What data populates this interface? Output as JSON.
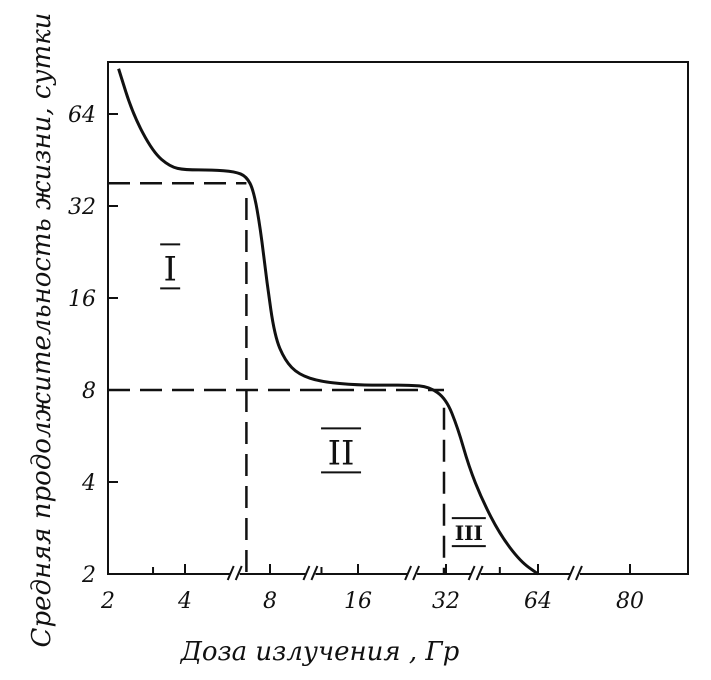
{
  "chart_data": {
    "type": "line",
    "xlabel": "Доза излучения , Гр",
    "ylabel": "Средняя продолжительность жизни, сутки",
    "x_scale": "log2-with-breaks",
    "y_scale": "log2",
    "x_ticks": [
      "2",
      "4",
      "8",
      "16",
      "32",
      "64",
      "80"
    ],
    "y_ticks": [
      "2",
      "4",
      "8",
      "16",
      "32",
      "64"
    ],
    "ylim": [
      2,
      90
    ],
    "series": [
      {
        "x": [
          2.2,
          2.5,
          3.0,
          3.5,
          4.0,
          5.0,
          6.0,
          6.6,
          7.0,
          7.4,
          7.8,
          8.3,
          9.0,
          10,
          12,
          16,
          20,
          24,
          28,
          32,
          35,
          38,
          42,
          48,
          56,
          64
        ],
        "y": [
          90,
          64,
          48,
          43,
          42,
          42,
          41.5,
          40,
          36,
          27,
          18,
          12,
          10,
          9,
          8.5,
          8.3,
          8.3,
          8.3,
          8.2,
          7.5,
          6,
          4.5,
          3.5,
          2.7,
          2.2,
          2.0
        ]
      }
    ],
    "reference_lines": [
      {
        "from": [
          2,
          38
        ],
        "to": [
          6.6,
          38
        ]
      },
      {
        "from": [
          6.6,
          34
        ],
        "to": [
          6.6,
          2
        ]
      },
      {
        "from": [
          2,
          8
        ],
        "to": [
          31.5,
          8
        ]
      },
      {
        "from": [
          31.5,
          7
        ],
        "to": [
          31.5,
          2
        ]
      }
    ],
    "regions": [
      {
        "label": "I",
        "x": 3.5,
        "y": 20
      },
      {
        "label": "II",
        "x": 14,
        "y": 5
      },
      {
        "label": "III",
        "x": 38,
        "y": 2.7
      }
    ]
  }
}
